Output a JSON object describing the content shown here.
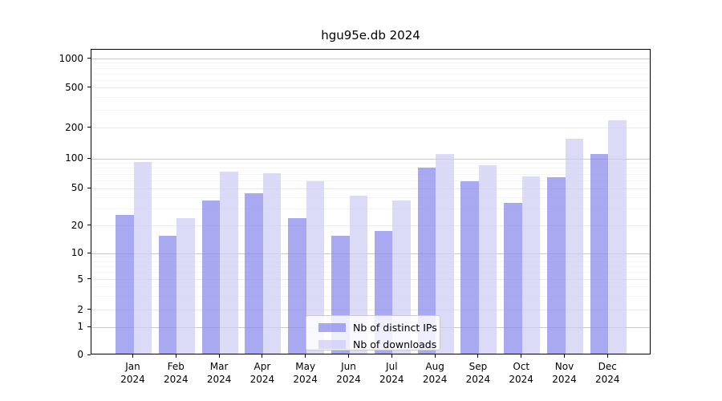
{
  "title": "hgu95e.db 2024",
  "chart_data": {
    "type": "bar",
    "title": "hgu95e.db 2024",
    "categories": [
      "Jan",
      "Feb",
      "Mar",
      "Apr",
      "May",
      "Jun",
      "Jul",
      "Aug",
      "Sep",
      "Oct",
      "Nov",
      "Dec"
    ],
    "category_year": "2024",
    "series": [
      {
        "name": "Nb of distinct IPs",
        "color": "#8888ed",
        "values": [
          25,
          15,
          36,
          43,
          23,
          15,
          17,
          79,
          57,
          34,
          63,
          107
        ]
      },
      {
        "name": "Nb of downloads",
        "color": "#cdcdf5",
        "values": [
          90,
          23,
          71,
          69,
          57,
          40,
          36,
          108,
          83,
          64,
          152,
          230
        ]
      }
    ],
    "bar_alpha": 0.72,
    "xlabel": "",
    "ylabel": "",
    "y_axis": {
      "ticks": [
        0,
        1,
        2,
        5,
        10,
        20,
        50,
        100,
        200,
        500,
        1000
      ],
      "scale": "log-like, 0 pinned at baseline",
      "ylim": [
        0,
        1000
      ]
    },
    "grid": {
      "horizontal": true,
      "decade_color": "#c9c9c9",
      "tick_color": "#e9e9e9",
      "minor_color": "#f4f4f4"
    },
    "legend": {
      "position": "inside-bottom-center"
    }
  }
}
